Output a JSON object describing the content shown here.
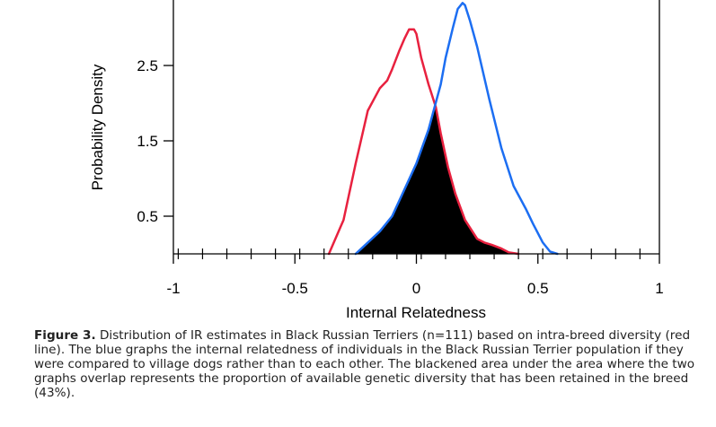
{
  "chart_data": {
    "type": "line",
    "xlabel": "Internal Relatedness",
    "ylabel": "Probability Density",
    "xlim": [
      -1,
      1
    ],
    "ylim": [
      0,
      3.3
    ],
    "x_ticks": [
      -1,
      -0.5,
      0,
      0.5,
      1
    ],
    "x_tick_labels": [
      "-1",
      "-0.5",
      "0",
      "0.5",
      "1"
    ],
    "y_ticks": [
      0.5,
      1.5,
      2.5
    ],
    "y_tick_labels": [
      "0.5",
      "1.5",
      "2.5"
    ],
    "grid": false,
    "overlap_fill_color": "#000000",
    "series": [
      {
        "color": "#e8213f",
        "x": [
          -0.36,
          -0.3,
          -0.25,
          -0.2,
          -0.15,
          -0.12,
          -0.1,
          -0.07,
          -0.05,
          -0.03,
          -0.01,
          0.0,
          0.02,
          0.05,
          0.08,
          0.1,
          0.13,
          0.16,
          0.2,
          0.25,
          0.28,
          0.31,
          0.35,
          0.38,
          0.42
        ],
        "y": [
          0.0,
          0.45,
          1.2,
          1.9,
          2.2,
          2.3,
          2.45,
          2.7,
          2.85,
          2.98,
          2.98,
          2.92,
          2.6,
          2.25,
          1.95,
          1.6,
          1.15,
          0.8,
          0.45,
          0.2,
          0.15,
          0.12,
          0.07,
          0.02,
          0.0
        ]
      },
      {
        "color": "#1c6ef2",
        "x": [
          -0.25,
          -0.2,
          -0.15,
          -0.1,
          -0.05,
          0.0,
          0.05,
          0.1,
          0.12,
          0.15,
          0.17,
          0.19,
          0.2,
          0.22,
          0.25,
          0.3,
          0.35,
          0.4,
          0.45,
          0.48,
          0.52,
          0.55,
          0.58
        ],
        "y": [
          0.0,
          0.15,
          0.3,
          0.5,
          0.85,
          1.2,
          1.65,
          2.25,
          2.6,
          3.0,
          3.25,
          3.33,
          3.3,
          3.1,
          2.75,
          2.05,
          1.4,
          0.9,
          0.6,
          0.4,
          0.15,
          0.03,
          0.0
        ]
      }
    ]
  },
  "caption": {
    "label": "Figure 3.",
    "text": " Distribution of IR estimates in Black Russian Terriers (n=111) based on intra-breed diversity (red line). The blue graphs the internal relatedness of individuals in the Black Russian Terrier population if they were compared to village dogs rather than to each other. The blackened area under the area where the two graphs overlap represents the proportion of available genetic diversity that has been retained in the breed (43%)."
  }
}
